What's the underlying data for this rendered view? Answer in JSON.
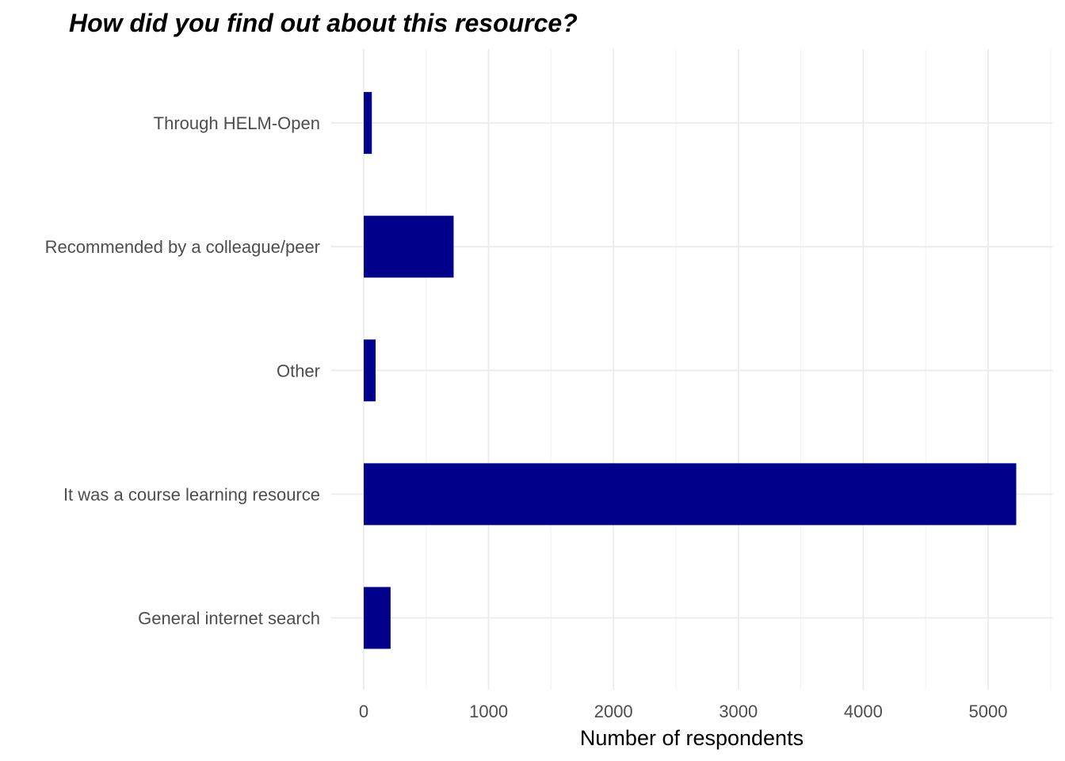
{
  "chart_data": {
    "type": "bar",
    "orientation": "horizontal",
    "title": "How did you find out about this resource?",
    "xlabel": "Number of respondents",
    "ylabel": "",
    "categories": [
      "General internet search",
      "It was a course learning resource",
      "Other",
      "Recommended by a colleague/peer",
      "Through HELM-Open"
    ],
    "values": [
      215,
      5225,
      95,
      720,
      65
    ],
    "xlim": [
      0,
      5500
    ],
    "x_ticks": [
      0,
      1000,
      2000,
      3000,
      4000,
      5000
    ],
    "x_tick_labels": [
      "0",
      "1000",
      "2000",
      "3000",
      "4000",
      "5000"
    ],
    "bar_color": "#00008b",
    "grid": true,
    "legend": "none"
  }
}
